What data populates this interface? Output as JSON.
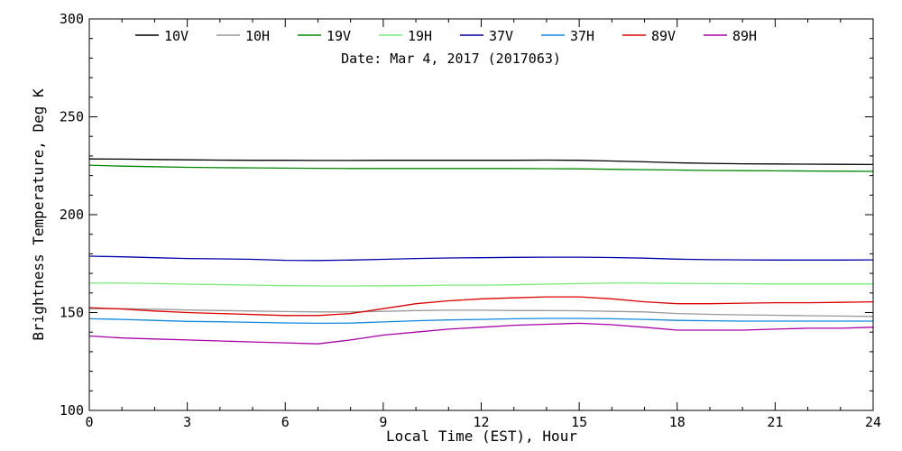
{
  "chart_data": {
    "type": "line",
    "title": "",
    "annotation": "Date: Mar  4, 2017 (2017063)",
    "xlabel": "Local Time (EST), Hour",
    "ylabel": "Brightness Temperature, Deg K",
    "xlim": [
      0,
      24
    ],
    "ylim": [
      100,
      300
    ],
    "x_ticks": [
      "0",
      "3",
      "6",
      "9",
      "12",
      "15",
      "18",
      "21",
      "24"
    ],
    "y_ticks": [
      "100",
      "150",
      "200",
      "250",
      "300"
    ],
    "grid": false,
    "legend_position": "top",
    "x": [
      0,
      1,
      2,
      3,
      4,
      5,
      6,
      7,
      8,
      9,
      10,
      11,
      12,
      13,
      14,
      15,
      16,
      17,
      18,
      19,
      20,
      21,
      22,
      23,
      24
    ],
    "series": [
      {
        "name": "10V",
        "color": "#000000",
        "values": [
          228.5,
          228.4,
          228.2,
          228.0,
          227.9,
          227.8,
          227.8,
          227.7,
          227.7,
          227.8,
          227.8,
          227.8,
          227.8,
          227.8,
          227.9,
          227.8,
          227.4,
          227.0,
          226.5,
          226.2,
          226.0,
          225.9,
          225.8,
          225.7,
          225.6
        ]
      },
      {
        "name": "10H",
        "color": "#999999",
        "values": [
          152.0,
          152.0,
          151.7,
          151.3,
          151.0,
          150.8,
          150.5,
          150.3,
          150.3,
          150.6,
          151.0,
          151.2,
          151.2,
          151.0,
          151.0,
          150.9,
          150.6,
          150.3,
          149.5,
          149.1,
          148.8,
          148.6,
          148.4,
          148.2,
          148.0
        ]
      },
      {
        "name": "19V",
        "color": "#008800",
        "values": [
          225.3,
          224.8,
          224.5,
          224.2,
          224.0,
          223.9,
          223.8,
          223.7,
          223.6,
          223.6,
          223.6,
          223.6,
          223.6,
          223.6,
          223.5,
          223.4,
          223.2,
          223.0,
          222.8,
          222.6,
          222.5,
          222.4,
          222.3,
          222.2,
          222.1
        ]
      },
      {
        "name": "19H",
        "color": "#77ee77",
        "values": [
          165.0,
          165.0,
          164.8,
          164.5,
          164.3,
          164.0,
          163.8,
          163.6,
          163.6,
          163.7,
          163.8,
          164.0,
          164.0,
          164.2,
          164.5,
          164.8,
          165.0,
          165.0,
          164.9,
          164.8,
          164.7,
          164.6,
          164.6,
          164.6,
          164.6
        ]
      },
      {
        "name": "37V",
        "color": "#0000aa",
        "values": [
          178.8,
          178.5,
          178.0,
          177.6,
          177.4,
          177.2,
          176.7,
          176.6,
          176.8,
          177.2,
          177.6,
          177.9,
          178.0,
          178.2,
          178.3,
          178.3,
          178.1,
          177.8,
          177.3,
          177.0,
          176.9,
          176.8,
          176.8,
          176.8,
          176.9
        ]
      },
      {
        "name": "37H",
        "color": "#1188dd",
        "values": [
          146.8,
          146.5,
          146.0,
          145.5,
          145.3,
          145.0,
          144.7,
          144.5,
          144.6,
          145.2,
          145.8,
          146.2,
          146.5,
          146.8,
          147.0,
          147.0,
          146.8,
          146.5,
          146.0,
          145.8,
          145.6,
          145.6,
          145.6,
          145.6,
          145.6
        ]
      },
      {
        "name": "89V",
        "color": "#dd0000",
        "values": [
          152.5,
          151.8,
          150.8,
          150.0,
          149.5,
          149.0,
          148.5,
          148.5,
          149.5,
          152.0,
          154.5,
          156.0,
          157.0,
          157.5,
          158.0,
          158.0,
          157.0,
          155.5,
          154.5,
          154.5,
          154.8,
          155.0,
          155.0,
          155.2,
          155.5
        ]
      },
      {
        "name": "89H",
        "color": "#aa00aa",
        "values": [
          138.0,
          137.0,
          136.5,
          136.0,
          135.5,
          135.0,
          134.5,
          134.0,
          136.0,
          138.5,
          140.0,
          141.5,
          142.5,
          143.5,
          144.0,
          144.5,
          143.8,
          142.5,
          141.0,
          141.0,
          141.0,
          141.5,
          142.0,
          142.0,
          142.5
        ]
      }
    ]
  }
}
